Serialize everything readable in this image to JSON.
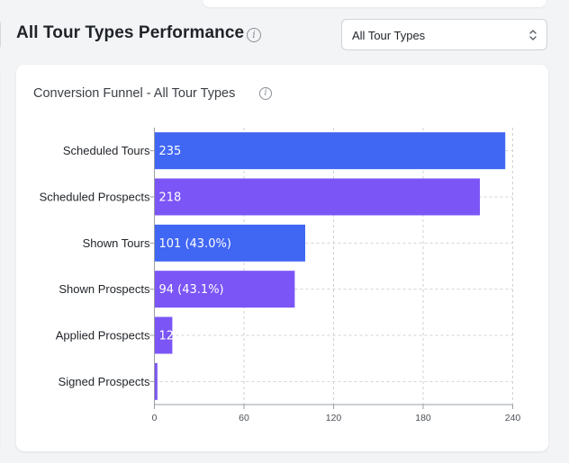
{
  "header": {
    "title": "All Tour Types Performance",
    "info_icon": "info-icon"
  },
  "filter": {
    "selected": "All Tour Types",
    "icon": "chevron-updown-icon"
  },
  "card": {
    "title": "Conversion Funnel - All Tour Types",
    "info_icon": "info-icon"
  },
  "colors": {
    "blue": "#4066f4",
    "purple": "#7b55f6"
  },
  "chart_data": {
    "type": "bar",
    "orientation": "horizontal",
    "title": "Conversion Funnel - All Tour Types",
    "xlabel": "",
    "ylabel": "",
    "xlim": [
      0,
      240
    ],
    "xticks": [
      0,
      60,
      120,
      180,
      240
    ],
    "grid": true,
    "categories": [
      "Scheduled Tours",
      "Scheduled Prospects",
      "Shown Tours",
      "Shown Prospects",
      "Applied Prospects",
      "Signed Prospects"
    ],
    "values": [
      235,
      218,
      101,
      94,
      12,
      2
    ],
    "data_labels": [
      "235",
      "218",
      "101 (43.0%)",
      "94 (43.1%)",
      "12",
      ""
    ],
    "bar_colors": [
      "#4066f4",
      "#7b55f6",
      "#4066f4",
      "#7b55f6",
      "#7b55f6",
      "#7b55f6"
    ]
  }
}
